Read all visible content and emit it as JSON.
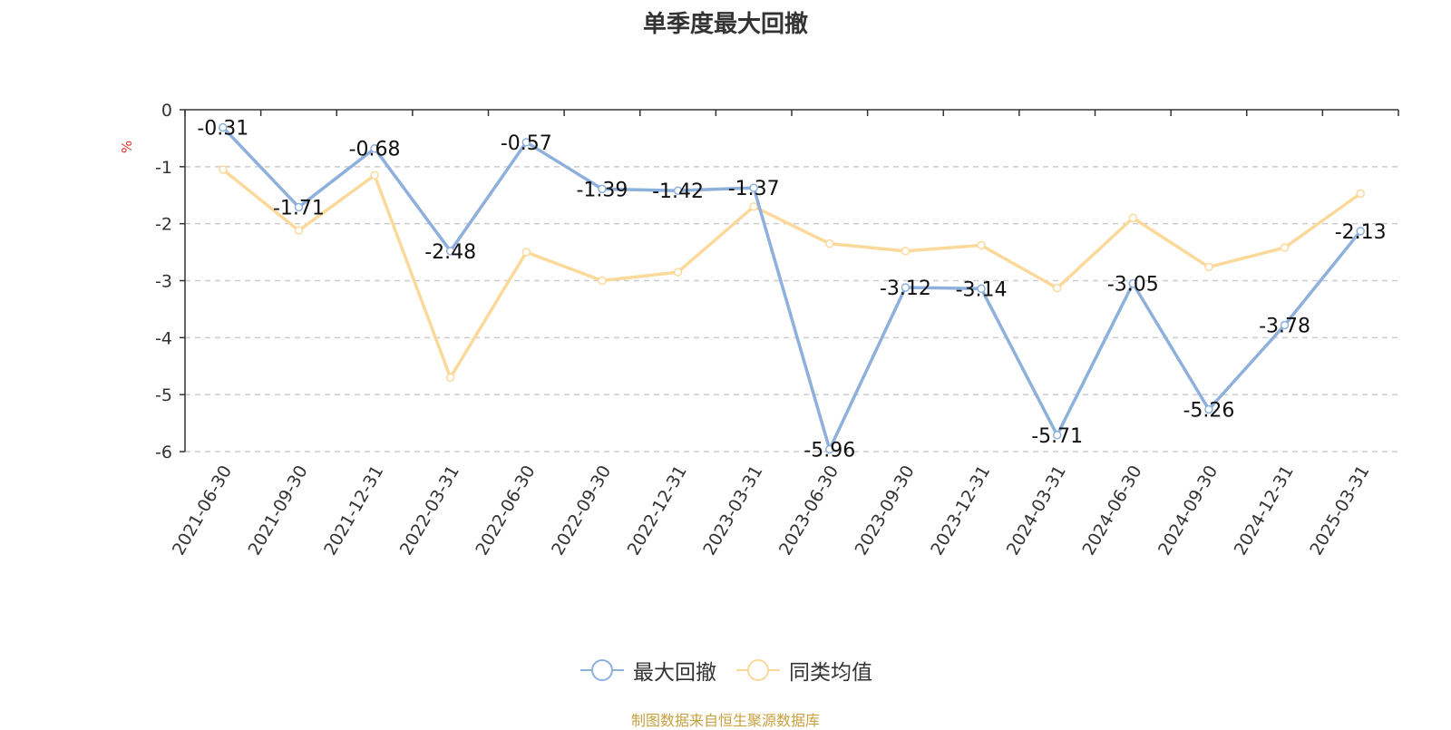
{
  "chart_data": {
    "type": "line",
    "title": "单季度最大回撤",
    "ylabel": "%",
    "ylim": [
      -6,
      0
    ],
    "yticks": [
      0,
      -1,
      -2,
      -3,
      -4,
      -5,
      -6
    ],
    "grid": true,
    "legend_position": "bottom",
    "categories": [
      "2021-06-30",
      "2021-09-30",
      "2021-12-31",
      "2022-03-31",
      "2022-06-30",
      "2022-09-30",
      "2022-12-31",
      "2023-03-31",
      "2023-06-30",
      "2023-09-30",
      "2023-12-31",
      "2024-03-31",
      "2024-06-30",
      "2024-09-30",
      "2024-12-31",
      "2025-03-31"
    ],
    "series": [
      {
        "name": "最大回撤",
        "color": "#8eb0dc",
        "labeled": true,
        "values": [
          -0.31,
          -1.71,
          -0.68,
          -2.48,
          -0.57,
          -1.39,
          -1.42,
          -1.37,
          -5.96,
          -3.12,
          -3.14,
          -5.71,
          -3.05,
          -5.26,
          -3.78,
          -2.13
        ]
      },
      {
        "name": "同类均值",
        "color": "#fbd99a",
        "labeled": false,
        "values": [
          -1.05,
          -2.12,
          -1.15,
          -4.7,
          -2.5,
          -3.0,
          -2.85,
          -1.7,
          -2.35,
          -2.48,
          -2.38,
          -3.13,
          -1.9,
          -2.76,
          -2.42,
          -1.47
        ]
      }
    ],
    "source_note": "制图数据来自恒生聚源数据库",
    "colors": {
      "title": "#333333",
      "axis": "#333333",
      "grid": "#cccccc",
      "ylabel": "#e0312c",
      "source": "#c8a040"
    }
  }
}
